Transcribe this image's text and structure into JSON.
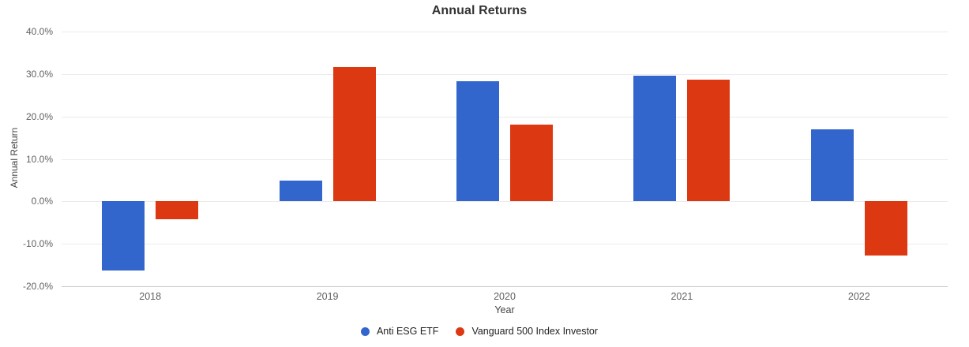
{
  "page": {
    "background": "#ffffff"
  },
  "chart_data": {
    "type": "bar",
    "title": "Annual Returns",
    "xlabel": "Year",
    "ylabel": "Annual Return",
    "categories": [
      "2018",
      "2019",
      "2020",
      "2021",
      "2022"
    ],
    "series": [
      {
        "name": "Anti ESG ETF",
        "color": "#3366CC",
        "values": [
          -16.3,
          4.9,
          28.3,
          29.6,
          17.0
        ]
      },
      {
        "name": "Vanguard 500 Index Investor",
        "color": "#DC3912",
        "values": [
          -4.2,
          31.6,
          18.1,
          28.7,
          -12.8
        ]
      }
    ],
    "value_unit": "percent",
    "ylim": [
      -20,
      40
    ],
    "ytick_step": 10,
    "ytick_labels": [
      "40.0%",
      "30.0%",
      "20.0%",
      "10.0%",
      "0.0%",
      "-10.0%",
      "-20.0%"
    ],
    "grid": true,
    "legend_position": "bottom"
  },
  "colors": {
    "series_blue": "#3366CC",
    "series_red": "#DC3912",
    "gridline": "#ebebeb",
    "baseline": "#c9c9c9",
    "title_text": "#333333",
    "tick_text": "#616161",
    "axis_title_text": "#444444",
    "legend_text": "#222222"
  }
}
